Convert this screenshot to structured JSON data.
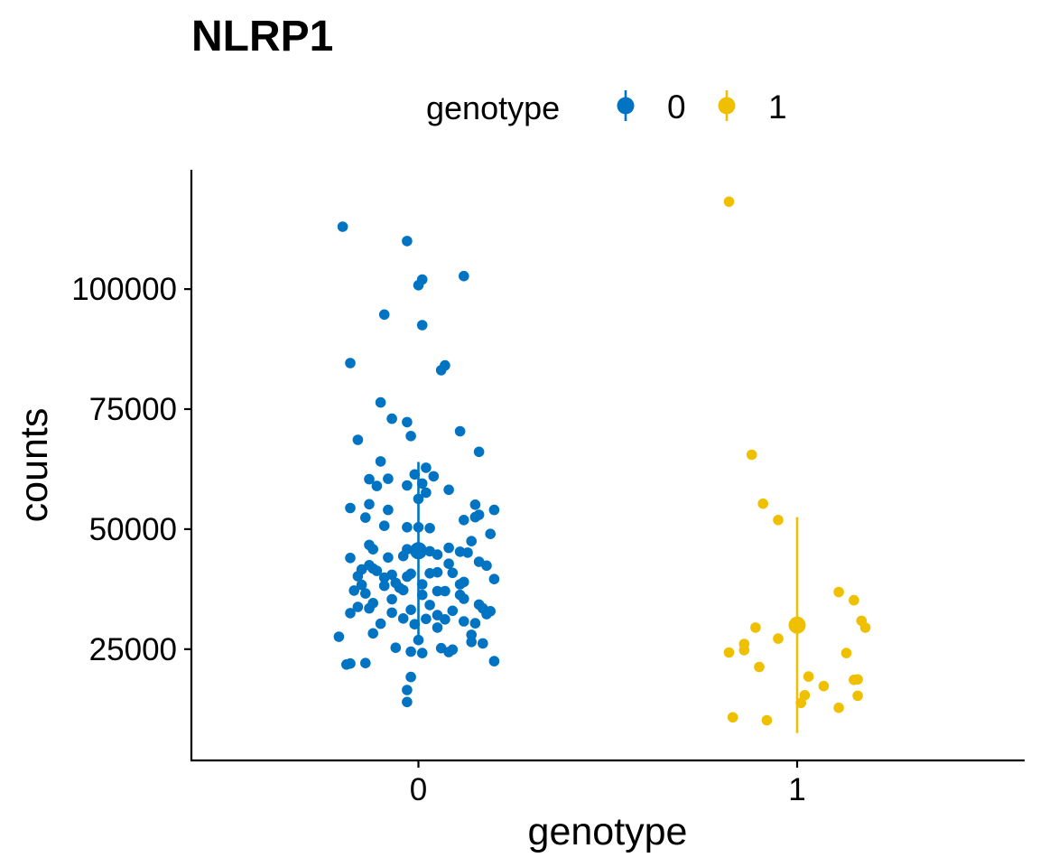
{
  "chart_data": {
    "type": "scatter",
    "title": "NLRP1",
    "xlabel": "genotype",
    "ylabel": "counts",
    "categories": [
      "0",
      "1"
    ],
    "y_ticks": [
      25000,
      50000,
      75000,
      100000
    ],
    "y_tick_labels": [
      "25000",
      "50000",
      "75000",
      "100000"
    ],
    "ylim": [
      3000,
      122500
    ],
    "grid": false,
    "legend": {
      "title": "genotype",
      "position": "top",
      "entries": [
        "0",
        "1"
      ]
    },
    "colors": {
      "0": "#0073C2",
      "1": "#EFC000"
    },
    "series": [
      {
        "name": "0",
        "category": "0",
        "summary": {
          "mean": 45500,
          "lower": 26000,
          "upper": 64000
        },
        "points": [
          [
            -0.2,
            113000
          ],
          [
            -0.03,
            110000
          ],
          [
            0.12,
            102700
          ],
          [
            0.01,
            102000
          ],
          [
            0.0,
            100800
          ],
          [
            -0.09,
            94700
          ],
          [
            0.01,
            92500
          ],
          [
            -0.18,
            84600
          ],
          [
            0.07,
            84100
          ],
          [
            0.06,
            83100
          ],
          [
            -0.1,
            76400
          ],
          [
            -0.07,
            73000
          ],
          [
            -0.03,
            72300
          ],
          [
            0.11,
            70400
          ],
          [
            -0.02,
            69400
          ],
          [
            -0.16,
            68600
          ],
          [
            0.16,
            66100
          ],
          [
            -0.1,
            64100
          ],
          [
            0.02,
            62800
          ],
          [
            -0.13,
            60400
          ],
          [
            -0.08,
            60500
          ],
          [
            -0.01,
            61400
          ],
          [
            0.04,
            61000
          ],
          [
            -0.11,
            59000
          ],
          [
            -0.03,
            59100
          ],
          [
            0.01,
            59500
          ],
          [
            0.08,
            58200
          ],
          [
            0.02,
            57600
          ],
          [
            -0.13,
            55200
          ],
          [
            0.15,
            55100
          ],
          [
            0.0,
            56300
          ],
          [
            -0.18,
            54400
          ],
          [
            -0.08,
            54000
          ],
          [
            0.2,
            54000
          ],
          [
            0.16,
            53000
          ],
          [
            0.15,
            52500
          ],
          [
            -0.14,
            52400
          ],
          [
            0.12,
            51900
          ],
          [
            -0.09,
            50700
          ],
          [
            -0.03,
            50400
          ],
          [
            0.0,
            50400
          ],
          [
            0.03,
            50200
          ],
          [
            0.19,
            49000
          ],
          [
            0.14,
            47500
          ],
          [
            -0.13,
            46700
          ],
          [
            -0.12,
            45800
          ],
          [
            0.08,
            46100
          ],
          [
            0.03,
            45400
          ],
          [
            0.11,
            45300
          ],
          [
            -0.03,
            45800
          ],
          [
            0.05,
            44700
          ],
          [
            0.13,
            45100
          ],
          [
            -0.04,
            44400
          ],
          [
            -0.08,
            44100
          ],
          [
            -0.18,
            44000
          ],
          [
            0.08,
            42800
          ],
          [
            0.16,
            43200
          ],
          [
            0.18,
            42400
          ],
          [
            -0.13,
            42500
          ],
          [
            -0.12,
            41800
          ],
          [
            -0.15,
            41600
          ],
          [
            -0.11,
            41300
          ],
          [
            -0.07,
            40500
          ],
          [
            -0.02,
            40700
          ],
          [
            0.03,
            40800
          ],
          [
            0.05,
            41000
          ],
          [
            0.09,
            40900
          ],
          [
            -0.16,
            40200
          ],
          [
            -0.09,
            39900
          ],
          [
            -0.03,
            40100
          ],
          [
            0.12,
            39000
          ],
          [
            0.2,
            39600
          ],
          [
            -0.06,
            38800
          ],
          [
            0.01,
            38500
          ],
          [
            0.11,
            38500
          ],
          [
            -0.15,
            38400
          ],
          [
            -0.09,
            38200
          ],
          [
            -0.05,
            37800
          ],
          [
            -0.17,
            37200
          ],
          [
            -0.04,
            37300
          ],
          [
            0.05,
            37100
          ],
          [
            0.07,
            37100
          ],
          [
            -0.14,
            36600
          ],
          [
            0.01,
            36300
          ],
          [
            0.11,
            36300
          ],
          [
            -0.07,
            35400
          ],
          [
            0.12,
            35500
          ],
          [
            -0.12,
            34600
          ],
          [
            0.03,
            34200
          ],
          [
            0.16,
            34300
          ],
          [
            -0.16,
            33800
          ],
          [
            -0.13,
            33500
          ],
          [
            -0.02,
            33200
          ],
          [
            0.09,
            33000
          ],
          [
            0.17,
            33500
          ],
          [
            0.19,
            32900
          ],
          [
            -0.18,
            32500
          ],
          [
            -0.07,
            32600
          ],
          [
            0.05,
            32100
          ],
          [
            0.18,
            32300
          ],
          [
            -0.04,
            31400
          ],
          [
            0.02,
            31300
          ],
          [
            0.07,
            31200
          ],
          [
            0.12,
            30800
          ],
          [
            0.15,
            30400
          ],
          [
            -0.1,
            30300
          ],
          [
            -0.01,
            30200
          ],
          [
            0.05,
            29500
          ],
          [
            -0.12,
            28300
          ],
          [
            0.14,
            28000
          ],
          [
            -0.21,
            27600
          ],
          [
            0.0,
            26900
          ],
          [
            0.14,
            26500
          ],
          [
            0.17,
            26200
          ],
          [
            -0.06,
            25300
          ],
          [
            0.06,
            25200
          ],
          [
            0.09,
            24900
          ],
          [
            -0.02,
            24500
          ],
          [
            0.01,
            24200
          ],
          [
            0.08,
            24400
          ],
          [
            0.2,
            22500
          ],
          [
            -0.18,
            22000
          ],
          [
            -0.14,
            22100
          ],
          [
            -0.19,
            21800
          ],
          [
            -0.02,
            19200
          ],
          [
            -0.03,
            16500
          ],
          [
            -0.03,
            14000
          ]
        ]
      },
      {
        "name": "1",
        "category": "1",
        "summary": {
          "mean": 30000,
          "lower": 7500,
          "upper": 52500
        },
        "points": [
          [
            -0.18,
            118200
          ],
          [
            -0.12,
            65500
          ],
          [
            -0.09,
            55300
          ],
          [
            -0.05,
            51900
          ],
          [
            0.11,
            36900
          ],
          [
            0.15,
            35200
          ],
          [
            0.17,
            30900
          ],
          [
            0.18,
            29500
          ],
          [
            -0.11,
            29500
          ],
          [
            -0.05,
            27200
          ],
          [
            -0.14,
            26100
          ],
          [
            -0.14,
            24800
          ],
          [
            -0.18,
            24300
          ],
          [
            0.13,
            24200
          ],
          [
            -0.1,
            21300
          ],
          [
            0.03,
            19300
          ],
          [
            0.15,
            18600
          ],
          [
            0.16,
            18700
          ],
          [
            0.07,
            17300
          ],
          [
            0.02,
            15400
          ],
          [
            0.16,
            15300
          ],
          [
            0.01,
            13800
          ],
          [
            0.11,
            12800
          ],
          [
            -0.17,
            10800
          ],
          [
            -0.08,
            10200
          ]
        ]
      }
    ]
  }
}
